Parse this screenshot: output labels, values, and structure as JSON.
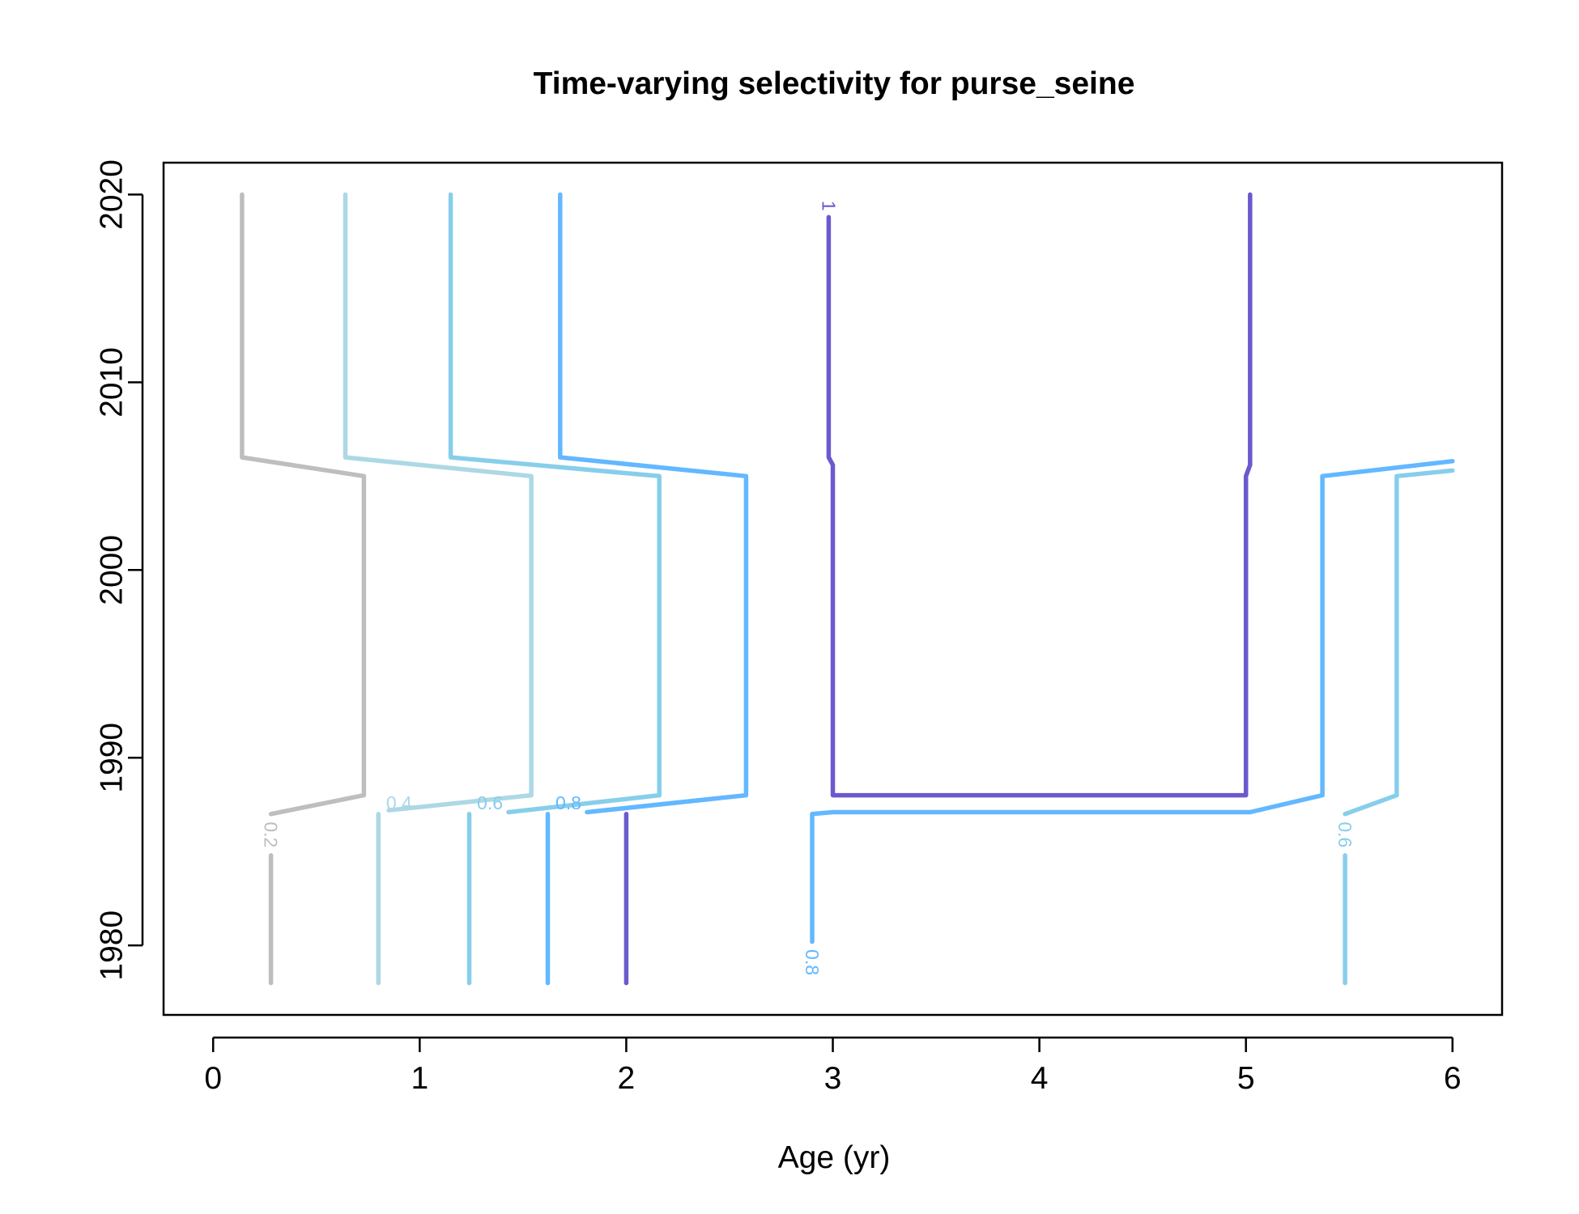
{
  "chart_data": {
    "type": "contour",
    "title": "Time-varying selectivity for purse_seine",
    "xlabel": "Age (yr)",
    "ylabel": "",
    "xlim": [
      -0.24,
      6.24
    ],
    "ylim": [
      1976.3,
      2021.7
    ],
    "x_ticks": [
      0,
      1,
      2,
      3,
      4,
      5,
      6
    ],
    "x_tick_labels": [
      "0",
      "1",
      "2",
      "3",
      "4",
      "5",
      "6"
    ],
    "y_ticks": [
      1980,
      1990,
      2000,
      2010,
      2020
    ],
    "y_tick_labels": [
      "1980",
      "1990",
      "2000",
      "2010",
      "2020"
    ],
    "grid": false,
    "legend": "none",
    "levels": [
      {
        "level": 0.2,
        "label": "0.2",
        "color": "#bebebe",
        "segments": [
          [
            [
              0.28,
              1978
            ],
            [
              0.28,
              1984.8
            ]
          ],
          [
            [
              0.28,
              1987
            ],
            [
              0.73,
              1988
            ],
            [
              0.73,
              2005
            ],
            [
              0.14,
              2006
            ],
            [
              0.14,
              2020
            ]
          ]
        ]
      },
      {
        "level": 0.4,
        "label": "0.4",
        "color": "#add8e6",
        "segments": [
          [
            [
              0.8,
              1978
            ],
            [
              0.8,
              1987
            ]
          ],
          [
            [
              0.85,
              1987.2
            ],
            [
              1.54,
              1988
            ],
            [
              1.54,
              2005
            ],
            [
              0.64,
              2006
            ],
            [
              0.64,
              2020
            ]
          ]
        ]
      },
      {
        "level": 0.6,
        "label": "0.6",
        "color": "#87ceeb",
        "segments": [
          [
            [
              1.24,
              1978
            ],
            [
              1.24,
              1987
            ]
          ],
          [
            [
              1.43,
              1987.1
            ],
            [
              2.16,
              1988
            ],
            [
              2.16,
              2005
            ],
            [
              1.15,
              2006
            ],
            [
              1.15,
              2020
            ]
          ],
          [
            [
              5.48,
              1978
            ],
            [
              5.48,
              1984.8
            ]
          ],
          [
            [
              5.48,
              1987
            ],
            [
              5.73,
              1988
            ],
            [
              5.73,
              2005
            ],
            [
              6.0,
              2005.3
            ]
          ]
        ]
      },
      {
        "level": 0.8,
        "label": "0.8",
        "color": "#63b8ff",
        "segments": [
          [
            [
              1.62,
              1978
            ],
            [
              1.62,
              1987
            ]
          ],
          [
            [
              1.81,
              1987.1
            ],
            [
              2.58,
              1988
            ],
            [
              2.58,
              2005
            ],
            [
              1.68,
              2006
            ],
            [
              1.68,
              2020
            ]
          ],
          [
            [
              2.9,
              1980.2
            ],
            [
              2.9,
              1987
            ],
            [
              3.0,
              1987.1
            ],
            [
              5.02,
              1987.1
            ],
            [
              5.37,
              1988
            ],
            [
              5.37,
              2005
            ],
            [
              6.0,
              2005.8
            ]
          ]
        ]
      },
      {
        "level": 1,
        "label": "1",
        "color": "#6a5acd",
        "segments": [
          [
            [
              2.0,
              1978
            ],
            [
              2.0,
              1987
            ]
          ],
          [
            [
              2.98,
              2018.8
            ],
            [
              2.98,
              2006
            ],
            [
              3.0,
              2005.6
            ],
            [
              3.0,
              1988
            ],
            [
              5.0,
              1988
            ],
            [
              5.0,
              2005
            ],
            [
              5.02,
              2005.6
            ],
            [
              5.02,
              2020
            ]
          ]
        ]
      }
    ],
    "contour_labels": [
      {
        "text": "0.2",
        "x": 0.28,
        "y": 1985.9,
        "color": "#bebebe",
        "angle": 90
      },
      {
        "text": "0.4",
        "x": 0.9,
        "y": 1987.6,
        "color": "#add8e6",
        "angle": 0
      },
      {
        "text": "0.6",
        "x": 1.34,
        "y": 1987.6,
        "color": "#87ceeb",
        "angle": 0
      },
      {
        "text": "0.8",
        "x": 1.72,
        "y": 1987.6,
        "color": "#63b8ff",
        "angle": 0
      },
      {
        "text": "0.8",
        "x": 2.9,
        "y": 1979.1,
        "color": "#63b8ff",
        "angle": 90
      },
      {
        "text": "0.6",
        "x": 5.48,
        "y": 1985.9,
        "color": "#87ceeb",
        "angle": 90
      },
      {
        "text": "1",
        "x": 2.98,
        "y": 2019.4,
        "color": "#6a5acd",
        "angle": 90
      }
    ]
  }
}
